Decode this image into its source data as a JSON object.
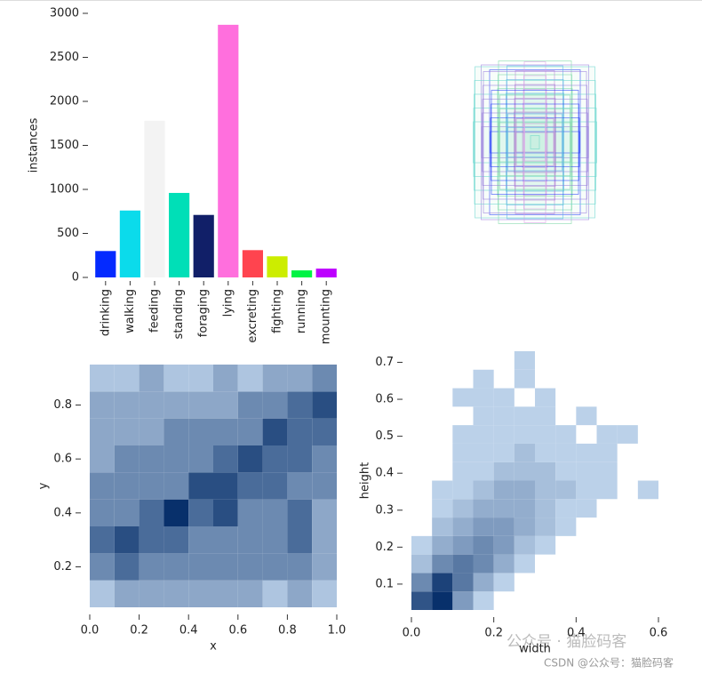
{
  "chart_data": [
    {
      "type": "bar",
      "ylabel": "instances",
      "categories": [
        "drinking",
        "walking",
        "feeding",
        "standing",
        "foraging",
        "lying",
        "excreting",
        "fighting",
        "running",
        "mounting"
      ],
      "values": [
        300,
        760,
        1780,
        960,
        710,
        2870,
        310,
        240,
        80,
        100
      ],
      "colors": [
        "#042aff",
        "#0bdbeb",
        "#f3f3f3",
        "#00dfb7",
        "#111f68",
        "#ff6fdd",
        "#ff444f",
        "#cced00",
        "#00f344",
        "#bd00ff"
      ],
      "ylim": [
        0,
        3000
      ],
      "yticks": [
        0,
        500,
        1000,
        1500,
        2000,
        2500,
        3000
      ],
      "grid": false
    },
    {
      "type": "hist2d",
      "xlabel": "x",
      "ylabel": "y",
      "color": "#1f77b4",
      "xlim": [
        0,
        1
      ],
      "ylim": [
        0.05,
        0.95
      ],
      "xticks": [
        {
          "value": 0,
          "label": "0.0"
        },
        0.2,
        0.4,
        0.6,
        0.8,
        {
          "value": 1,
          "label": "1.0"
        }
      ],
      "yticks": [
        0.2,
        0.4,
        0.6,
        0.8
      ],
      "xbins": [
        0,
        0.1,
        0.2,
        0.3,
        0.4,
        0.5,
        0.6,
        0.7,
        0.8,
        0.9,
        1.0
      ],
      "ybins": [
        0.05,
        0.15,
        0.25,
        0.35,
        0.45,
        0.55,
        0.65,
        0.75,
        0.85,
        0.95
      ],
      "counts": [
        [
          1,
          2,
          2,
          2,
          2,
          2,
          2,
          1,
          2,
          1
        ],
        [
          3,
          4,
          3,
          3,
          3,
          3,
          3,
          3,
          3,
          2
        ],
        [
          4,
          5,
          4,
          4,
          3,
          3,
          3,
          3,
          4,
          2
        ],
        [
          3,
          3,
          4,
          6,
          4,
          5,
          3,
          3,
          4,
          2
        ],
        [
          3,
          3,
          3,
          3,
          5,
          5,
          4,
          4,
          3,
          3
        ],
        [
          2,
          3,
          3,
          3,
          3,
          4,
          5,
          4,
          4,
          3
        ],
        [
          2,
          2,
          2,
          3,
          3,
          3,
          3,
          5,
          4,
          4
        ],
        [
          2,
          2,
          2,
          2,
          2,
          2,
          3,
          3,
          4,
          5
        ],
        [
          1,
          1,
          2,
          1,
          1,
          2,
          1,
          2,
          2,
          3
        ]
      ]
    },
    {
      "type": "hist2d",
      "xlabel": "width",
      "ylabel": "height",
      "color": "#1f77b4",
      "xlim": [
        0,
        0.6
      ],
      "ylim": [
        0.03,
        0.73
      ],
      "xticks": [
        {
          "value": 0,
          "label": "0.0"
        },
        0.2,
        0.4,
        0.6
      ],
      "yticks": [
        0.1,
        0.2,
        0.3,
        0.4,
        0.5,
        0.6,
        0.7
      ],
      "xbins": [
        0,
        0.05,
        0.1,
        0.15,
        0.2,
        0.25,
        0.3,
        0.35,
        0.4,
        0.45,
        0.5,
        0.55,
        0.6
      ],
      "ybins": [
        0.03,
        0.08,
        0.13,
        0.18,
        0.23,
        0.28,
        0.33,
        0.38,
        0.43,
        0.48,
        0.53,
        0.58,
        0.63,
        0.68,
        0.73
      ],
      "counts": [
        [
          8,
          10,
          4,
          1,
          0,
          0,
          0,
          0,
          0,
          0,
          0,
          0
        ],
        [
          5,
          9,
          6,
          3,
          1,
          0,
          0,
          0,
          0,
          0,
          0,
          0
        ],
        [
          2,
          5,
          6,
          5,
          3,
          1,
          0,
          0,
          0,
          0,
          0,
          0
        ],
        [
          1,
          3,
          4,
          5,
          4,
          2,
          1,
          0,
          0,
          0,
          0,
          0
        ],
        [
          0,
          2,
          3,
          4,
          4,
          3,
          2,
          1,
          0,
          0,
          0,
          0
        ],
        [
          0,
          1,
          2,
          3,
          3,
          3,
          2,
          1,
          1,
          0,
          0,
          0
        ],
        [
          0,
          1,
          1,
          2,
          3,
          3,
          2,
          2,
          1,
          1,
          0,
          1
        ],
        [
          0,
          0,
          1,
          1,
          2,
          2,
          2,
          1,
          1,
          1,
          0,
          0
        ],
        [
          0,
          0,
          1,
          1,
          1,
          2,
          1,
          1,
          1,
          1,
          0,
          0
        ],
        [
          0,
          0,
          1,
          1,
          1,
          1,
          1,
          1,
          0,
          1,
          1,
          0
        ],
        [
          0,
          0,
          0,
          1,
          1,
          1,
          1,
          0,
          1,
          0,
          0,
          0
        ],
        [
          0,
          0,
          1,
          1,
          1,
          0,
          1,
          0,
          0,
          0,
          0,
          0
        ],
        [
          0,
          0,
          0,
          1,
          0,
          1,
          0,
          0,
          0,
          0,
          0,
          0
        ],
        [
          0,
          0,
          0,
          0,
          0,
          1,
          0,
          0,
          0,
          0,
          0,
          0
        ]
      ]
    }
  ],
  "watermark": {
    "main": "公众号 · 猫脸码客",
    "footer": "CSDN @公众号：猫脸码客"
  }
}
